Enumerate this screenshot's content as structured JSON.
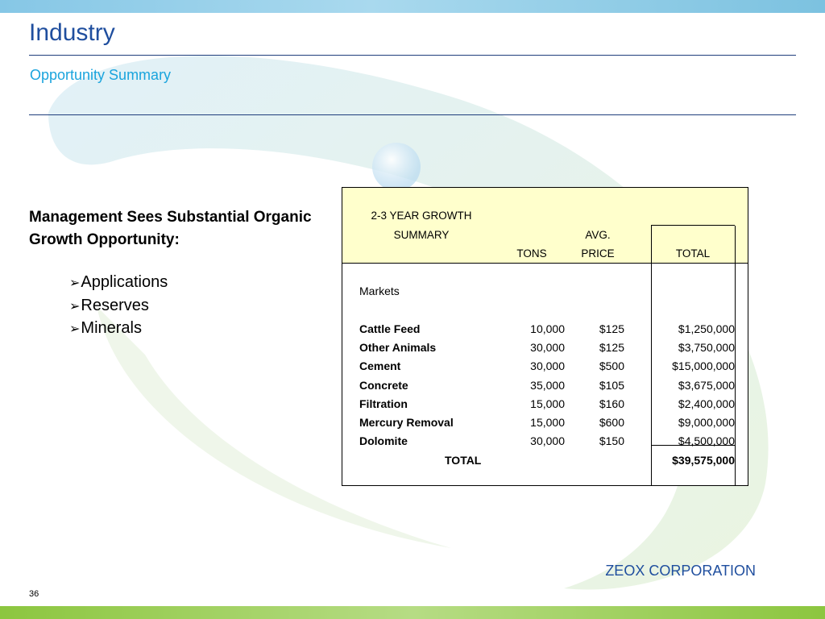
{
  "slide": {
    "title": "Industry",
    "subtitle": "Opportunity Summary",
    "left_heading": "Management Sees Substantial Organic Growth  Opportunity:",
    "bullets": [
      "Applications",
      "Reserves",
      "Minerals"
    ],
    "footer_brand": "ZEOX CORPORATION",
    "page_number": "36"
  },
  "table": {
    "header": {
      "line1": "2-3 YEAR GROWTH",
      "line2": "SUMMARY",
      "tons": "TONS",
      "avg_line1": "AVG.",
      "avg_line2": "PRICE",
      "total": "TOTAL"
    },
    "section_label": "Markets",
    "rows": [
      {
        "market": "Cattle Feed",
        "tons": "10,000",
        "price": "$125",
        "total": "$1,250,000"
      },
      {
        "market": "Other Animals",
        "tons": "30,000",
        "price": "$125",
        "total": "$3,750,000"
      },
      {
        "market": "Cement",
        "tons": "30,000",
        "price": "$500",
        "total": "$15,000,000"
      },
      {
        "market": "Concrete",
        "tons": "35,000",
        "price": "$105",
        "total": "$3,675,000"
      },
      {
        "market": "Filtration",
        "tons": "15,000",
        "price": "$160",
        "total": "$2,400,000"
      },
      {
        "market": "Mercury Removal",
        "tons": "15,000",
        "price": "$600",
        "total": "$9,000,000"
      },
      {
        "market": "Dolomite",
        "tons": "30,000",
        "price": "$150",
        "total": "$4,500,000"
      }
    ],
    "total_row": {
      "label": "TOTAL",
      "total": "$39,575,000"
    }
  },
  "colors": {
    "title": "#1f4e9e",
    "subtitle": "#1aa4dd",
    "header_fill": "#ffffcc",
    "top_band": "#86c7e6",
    "bottom_band": "#8cc63f"
  }
}
